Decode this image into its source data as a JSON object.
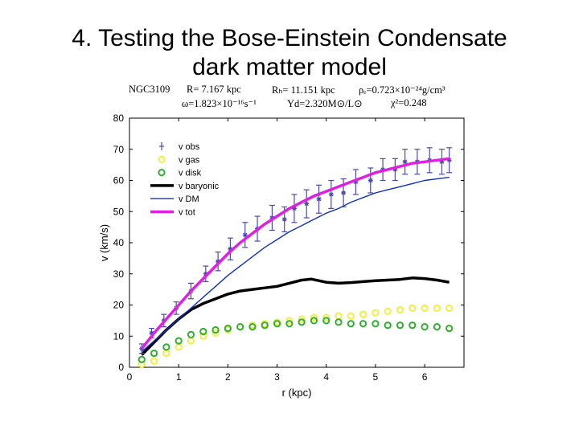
{
  "slide": {
    "title_line1": "4. Testing the Bose-Einstein Condensate",
    "title_line2": "dark matter model"
  },
  "fit_header": {
    "line1": [
      "NGC3109",
      "R= 7.167 kpc",
      "Rₕ= 11.151 kpc",
      "ρₑ=0.723×10⁻²⁴g/cm³"
    ],
    "line2": [
      "ω=1.823×10⁻¹⁶s⁻¹",
      "Υd=2.320M⊙/L⊙",
      "χ²=0.248"
    ]
  },
  "chart_data": {
    "type": "scatter",
    "xlabel": "r (kpc)",
    "ylabel": "v (km/s)",
    "xlim": [
      0,
      6.8
    ],
    "ylim": [
      0,
      80
    ],
    "xticks": [
      0,
      1,
      2,
      3,
      4,
      5,
      6
    ],
    "yticks": [
      0,
      10,
      20,
      30,
      40,
      50,
      60,
      70,
      80
    ],
    "grid": false,
    "legend": "top-left",
    "series": [
      {
        "name": "v obs",
        "kind": "errorbar",
        "color": "#4a4ab0",
        "x": [
          0.25,
          0.45,
          0.7,
          0.95,
          1.25,
          1.55,
          1.8,
          2.05,
          2.35,
          2.6,
          2.9,
          3.15,
          3.35,
          3.6,
          3.85,
          4.1,
          4.35,
          4.6,
          4.9,
          5.15,
          5.4,
          5.6,
          5.85,
          6.1,
          6.35,
          6.5
        ],
        "y": [
          6,
          11,
          15,
          19,
          24.5,
          30,
          34,
          38,
          42.5,
          44.5,
          48,
          47.5,
          51,
          52.5,
          54,
          55.5,
          56,
          59.5,
          60,
          63.5,
          63.5,
          66,
          66,
          66.5,
          66,
          66.5
        ],
        "err": [
          1.5,
          1.5,
          2,
          2,
          2.5,
          2.5,
          3,
          3.5,
          4,
          4,
          4,
          4,
          4.5,
          4.5,
          4.5,
          4.5,
          4.5,
          4,
          4,
          3.5,
          3.5,
          4,
          4,
          4,
          4,
          4
        ]
      },
      {
        "name": "v gas",
        "kind": "markers",
        "color": "#f0f040",
        "x": [
          0.25,
          0.5,
          0.75,
          1.0,
          1.25,
          1.5,
          1.75,
          2.0,
          2.25,
          2.5,
          2.75,
          3.0,
          3.25,
          3.5,
          3.75,
          4.0,
          4.25,
          4.5,
          4.75,
          5.0,
          5.25,
          5.5,
          5.75,
          6.0,
          6.25,
          6.5
        ],
        "y": [
          1,
          2,
          4.5,
          6.5,
          8.5,
          10,
          11,
          12,
          13,
          13.5,
          14,
          14.5,
          15,
          15.5,
          16,
          16,
          16.5,
          16.5,
          17,
          17.5,
          18,
          18.5,
          19,
          19,
          19,
          19
        ]
      },
      {
        "name": "v disk",
        "kind": "markers",
        "color": "#30b030",
        "x": [
          0.25,
          0.5,
          0.75,
          1.0,
          1.25,
          1.5,
          1.75,
          2.0,
          2.25,
          2.5,
          2.75,
          3.0,
          3.25,
          3.5,
          3.75,
          4.0,
          4.25,
          4.5,
          4.75,
          5.0,
          5.25,
          5.5,
          5.75,
          6.0,
          6.25,
          6.5
        ],
        "y": [
          2.5,
          4.5,
          6.5,
          8.5,
          10.5,
          11.5,
          12,
          12.5,
          13,
          13,
          13.5,
          14,
          14,
          14.5,
          15,
          15,
          14.5,
          14,
          14,
          14,
          13.5,
          13.5,
          13.5,
          13,
          13,
          12.5
        ]
      },
      {
        "name": "v baryonic",
        "kind": "line",
        "color": "#000000",
        "width": 3.5,
        "x": [
          0.25,
          0.5,
          0.75,
          1.0,
          1.25,
          1.5,
          1.75,
          2.0,
          2.25,
          2.5,
          2.75,
          3.0,
          3.25,
          3.5,
          3.7,
          4.0,
          4.25,
          4.5,
          4.75,
          5.0,
          5.25,
          5.5,
          5.75,
          6.0,
          6.25,
          6.5
        ],
        "y": [
          4,
          8,
          12,
          15.5,
          18.5,
          20.5,
          22,
          23.5,
          24.5,
          25,
          25.5,
          26,
          27,
          28,
          28.3,
          27.3,
          27,
          27.2,
          27.5,
          27.8,
          28,
          28.2,
          28.7,
          28.5,
          28,
          27.3
        ]
      },
      {
        "name": "v DM",
        "kind": "line",
        "color": "#1030c0",
        "width": 1.4,
        "x": [
          0.25,
          0.5,
          0.75,
          1.0,
          1.25,
          1.5,
          1.75,
          2.0,
          2.25,
          2.5,
          2.75,
          3.0,
          3.25,
          3.5,
          3.75,
          4.0,
          4.25,
          4.5,
          4.75,
          5.0,
          5.25,
          5.5,
          5.75,
          6.0,
          6.25,
          6.5
        ],
        "y": [
          5,
          8.5,
          12,
          15.5,
          19,
          22.5,
          26,
          29.5,
          32.5,
          35.5,
          38.5,
          41,
          43.5,
          45.5,
          47.5,
          49.5,
          51,
          53,
          54.5,
          56,
          57,
          58,
          59,
          60,
          60.5,
          61
        ]
      },
      {
        "name": "v tot",
        "kind": "line",
        "color": "#e020e0",
        "width": 3.5,
        "x": [
          0.25,
          0.5,
          0.75,
          1.0,
          1.25,
          1.5,
          1.75,
          2.0,
          2.25,
          2.5,
          2.75,
          3.0,
          3.25,
          3.5,
          3.75,
          4.0,
          4.25,
          4.5,
          4.75,
          5.0,
          5.25,
          5.5,
          5.75,
          6.0,
          6.25,
          6.5
        ],
        "y": [
          6,
          11,
          15.5,
          20,
          24.5,
          28.5,
          32.5,
          36.5,
          40,
          43,
          46,
          48.5,
          51,
          53,
          55,
          56.5,
          58,
          59.5,
          61,
          62.5,
          63.5,
          64.5,
          65.5,
          66,
          66.5,
          67
        ]
      }
    ]
  }
}
